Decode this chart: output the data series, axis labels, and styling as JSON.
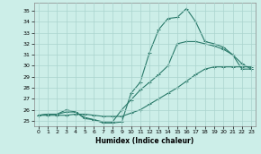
{
  "title": "",
  "xlabel": "Humidex (Indice chaleur)",
  "bg_color": "#cceee8",
  "grid_color": "#aad4ce",
  "line_color": "#2a7a6a",
  "xlim": [
    -0.5,
    23.5
  ],
  "ylim": [
    24.5,
    35.7
  ],
  "xticks": [
    0,
    1,
    2,
    3,
    4,
    5,
    6,
    7,
    8,
    9,
    10,
    11,
    12,
    13,
    14,
    15,
    16,
    17,
    18,
    19,
    20,
    21,
    22,
    23
  ],
  "yticks": [
    25,
    26,
    27,
    28,
    29,
    30,
    31,
    32,
    33,
    34,
    35
  ],
  "series": [
    [
      25.5,
      25.6,
      25.6,
      26.0,
      25.8,
      25.2,
      25.1,
      24.8,
      24.8,
      24.9,
      27.5,
      28.5,
      31.2,
      33.3,
      34.3,
      34.4,
      35.2,
      34.0,
      32.2,
      32.0,
      31.7,
      31.0,
      29.7,
      29.7
    ],
    [
      25.5,
      25.5,
      25.5,
      25.5,
      25.6,
      25.6,
      25.5,
      25.4,
      25.4,
      25.4,
      25.7,
      26.0,
      26.5,
      27.0,
      27.5,
      28.0,
      28.6,
      29.2,
      29.7,
      29.9,
      29.9,
      29.9,
      29.9,
      29.9
    ],
    [
      25.5,
      25.6,
      25.6,
      25.8,
      25.8,
      25.3,
      25.1,
      24.9,
      24.9,
      26.0,
      26.9,
      27.8,
      28.5,
      29.2,
      30.0,
      32.0,
      32.2,
      32.2,
      32.0,
      31.8,
      31.5,
      31.0,
      30.2,
      29.7
    ]
  ]
}
